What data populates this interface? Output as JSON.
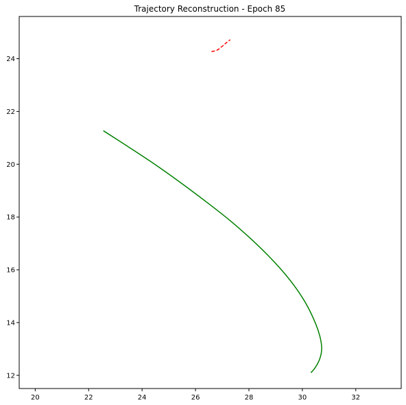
{
  "chart_data": {
    "type": "line",
    "title": "Trajectory Reconstruction - Epoch 85",
    "xlabel": "",
    "ylabel": "",
    "xlim": [
      19.4,
      33.7
    ],
    "ylim": [
      11.5,
      25.6
    ],
    "x_ticks": [
      20,
      22,
      24,
      26,
      28,
      30,
      32
    ],
    "y_ticks": [
      12,
      14,
      16,
      18,
      20,
      22,
      24
    ],
    "grid": false,
    "legend": "none",
    "series": [
      {
        "color": "#008000",
        "style": "solid",
        "x": [
          22.55,
          23.5,
          24.5,
          25.5,
          26.5,
          27.3,
          28.0,
          28.7,
          29.3,
          29.8,
          30.2,
          30.5,
          30.65,
          30.72,
          30.7,
          30.6,
          30.45,
          30.32
        ],
        "y": [
          21.27,
          20.65,
          19.98,
          19.26,
          18.5,
          17.86,
          17.24,
          16.56,
          15.9,
          15.25,
          14.6,
          13.95,
          13.5,
          13.1,
          12.8,
          12.5,
          12.25,
          12.1
        ]
      },
      {
        "color": "#ff0000",
        "style": "dashed",
        "x": [
          26.6,
          26.8,
          27.0,
          27.15,
          27.3
        ],
        "y": [
          24.27,
          24.32,
          24.47,
          24.6,
          24.72
        ]
      }
    ]
  }
}
